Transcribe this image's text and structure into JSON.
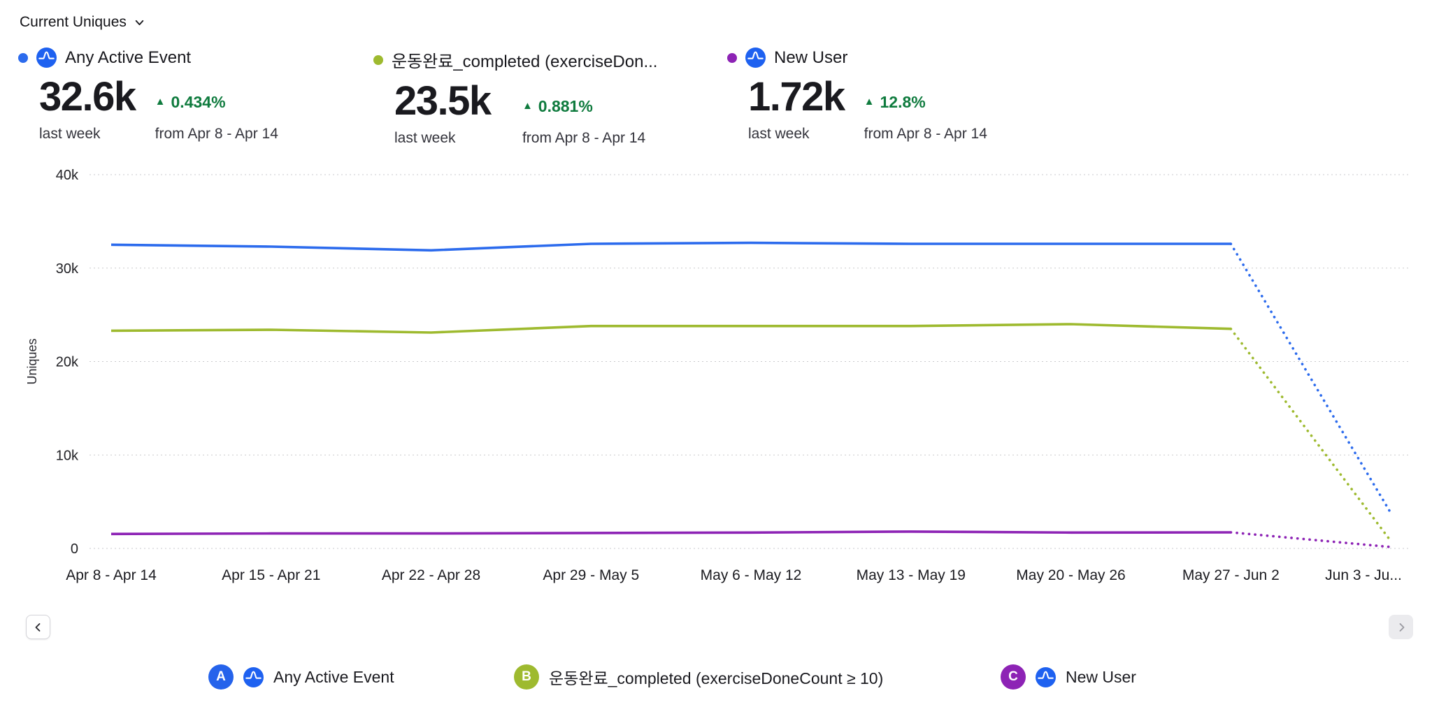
{
  "header": {
    "title": "Current Uniques"
  },
  "metrics": [
    {
      "label": "Any Active Event",
      "dot_color": "#2c6bed",
      "value": "32.6k",
      "value_caption": "last week",
      "delta": "0.434%",
      "delta_direction": "up",
      "delta_caption": "from Apr 8 - Apr 14"
    },
    {
      "label": "운동완료_completed (exerciseDon...",
      "dot_color": "#9eba2f",
      "value": "23.5k",
      "value_caption": "last week",
      "delta": "0.881%",
      "delta_direction": "up",
      "delta_caption": "from Apr 8 - Apr 14"
    },
    {
      "label": "New User",
      "dot_color": "#8d23b5",
      "value": "1.72k",
      "value_caption": "last week",
      "delta": "12.8%",
      "delta_direction": "up",
      "delta_caption": "from Apr 8 - Apr 14"
    }
  ],
  "chart_data": {
    "type": "line",
    "title": "Current Uniques",
    "ylabel": "Uniques",
    "ylim": [
      0,
      40000
    ],
    "yticks": [
      0,
      10000,
      20000,
      30000,
      40000
    ],
    "ytick_labels": [
      "0",
      "10k",
      "20k",
      "30k",
      "40k"
    ],
    "categories": [
      "Apr 8 - Apr 14",
      "Apr 15 - Apr 21",
      "Apr 22 - Apr 28",
      "Apr 29 - May 5",
      "May 6 - May 12",
      "May 13 - May 19",
      "May 20 - May 26",
      "May 27 - Jun 2",
      "Jun 3 - Ju..."
    ],
    "dashed_from_index": 7,
    "grid": true,
    "legend_position": "bottom",
    "series": [
      {
        "name": "Any Active Event",
        "color": "#2c6bed",
        "values": [
          32500,
          32300,
          31900,
          32600,
          32700,
          32600,
          32600,
          32600,
          3800
        ]
      },
      {
        "name": "운동완료_completed (exerciseDoneCount ≥ 10)",
        "color": "#9eba2f",
        "values": [
          23300,
          23400,
          23100,
          23800,
          23800,
          23800,
          24000,
          23500,
          800
        ]
      },
      {
        "name": "New User",
        "color": "#8d23b5",
        "values": [
          1550,
          1600,
          1600,
          1650,
          1700,
          1800,
          1700,
          1720,
          150
        ]
      }
    ]
  },
  "pagination": {
    "prev_enabled": true,
    "next_enabled": false
  },
  "legend": [
    {
      "badge": "A",
      "badge_color": "#2563eb",
      "has_logo": true,
      "label": "Any Active Event"
    },
    {
      "badge": "B",
      "badge_color": "#9eba2f",
      "has_logo": false,
      "label": "운동완료_completed (exerciseDoneCount ≥ 10)"
    },
    {
      "badge": "C",
      "badge_color": "#8d23b5",
      "has_logo": true,
      "label": "New User"
    }
  ],
  "colors": {
    "series_blue": "#2c6bed",
    "series_green": "#9eba2f",
    "series_purple": "#8d23b5",
    "positive_delta": "#0f7b3e",
    "gridline": "#c9c9cc",
    "logo_blue": "#1e61f0"
  }
}
